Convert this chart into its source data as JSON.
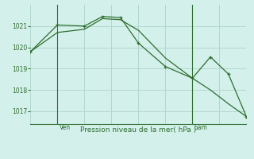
{
  "title": "Pression niveau de la mer( hPa )",
  "bg_color": "#d4f0eb",
  "line_color": "#2d6e2d",
  "grid_color": "#b0d8d0",
  "ylim": [
    1016.4,
    1022.0
  ],
  "yticks": [
    1017,
    1018,
    1019,
    1020,
    1021
  ],
  "xlim": [
    0,
    12
  ],
  "ven_x": 1.5,
  "sam_x": 9.0,
  "series1_x": [
    0,
    1.5,
    3,
    4,
    5,
    6,
    7.5,
    9,
    10,
    11,
    12
  ],
  "series1_y": [
    1019.8,
    1020.7,
    1020.85,
    1021.35,
    1021.3,
    1020.8,
    1019.5,
    1018.55,
    1018.0,
    1017.35,
    1016.75
  ],
  "series2_x": [
    0,
    1.5,
    3,
    4,
    5,
    6,
    7.5,
    9,
    10,
    11,
    12
  ],
  "series2_y": [
    1019.8,
    1021.05,
    1021.0,
    1021.45,
    1021.4,
    1020.2,
    1019.1,
    1018.55,
    1019.55,
    1018.75,
    1016.75
  ]
}
